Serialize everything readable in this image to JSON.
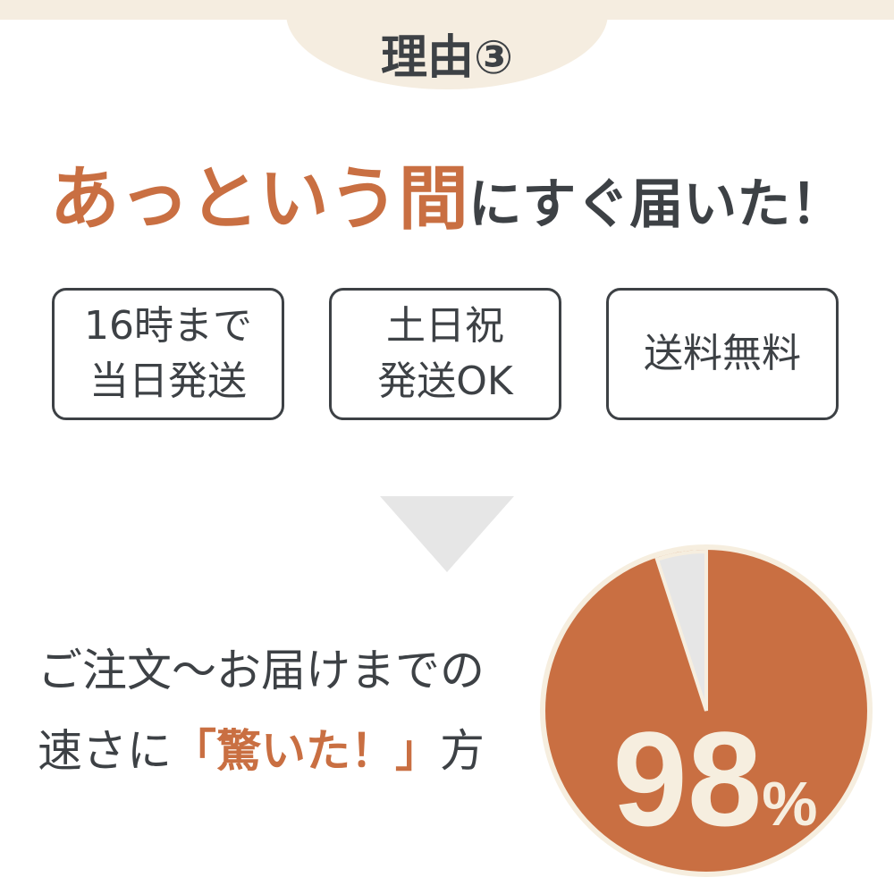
{
  "tab": {
    "label": "理由③"
  },
  "headline": {
    "accent": "あっという間",
    "rest": "にすぐ届いた！"
  },
  "features": [
    {
      "lines": [
        "16時まで",
        "当日発送"
      ]
    },
    {
      "lines": [
        "土日祝",
        "発送OK"
      ]
    },
    {
      "lines": [
        "送料無料"
      ]
    }
  ],
  "summary": {
    "line1": "ご注文～お届けまでの",
    "line2_prefix": "速さに",
    "line2_accent": "「驚いた！」",
    "line2_suffix": "方"
  },
  "pie": {
    "value": 98,
    "number": "98",
    "unit": "%"
  },
  "colors": {
    "accent": "#c96f42",
    "text": "#3d4145",
    "beige": "#f5ede0",
    "gray": "#e6e6e6",
    "cream": "#f6eedf"
  }
}
